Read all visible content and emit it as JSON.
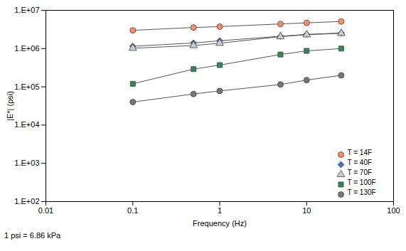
{
  "chart_data": {
    "type": "line",
    "x": [
      0.1,
      0.5,
      1,
      5,
      10,
      25
    ],
    "series": [
      {
        "name": "T = 14F",
        "color": "#FF8C69",
        "marker": "circle",
        "values": [
          3000000,
          3550000,
          3750000,
          4400000,
          4700000,
          5100000
        ]
      },
      {
        "name": "T = 40F",
        "color": "#4472C4",
        "marker": "diamond",
        "values": [
          1150000,
          1400000,
          1600000,
          2100000,
          2350000,
          2550000
        ]
      },
      {
        "name": "T = 70F",
        "color": "#CCCCCC",
        "marker": "triangle",
        "values": [
          1020000,
          1200000,
          1380000,
          2050000,
          2300000,
          2500000
        ]
      },
      {
        "name": "T = 100F",
        "color": "#2E8B57",
        "marker": "square",
        "values": [
          120000,
          290000,
          370000,
          700000,
          870000,
          1000000
        ]
      },
      {
        "name": "T = 130F",
        "color": "#777777",
        "marker": "circle",
        "values": [
          40000,
          65000,
          78000,
          115000,
          150000,
          200000
        ]
      }
    ],
    "xlabel": "Frequency (Hz)",
    "ylabel": "|E*| (psi)",
    "annotation": "1 psi = 6.86 kPa",
    "xlim": [
      0.01,
      100
    ],
    "ylim": [
      100,
      10000000
    ],
    "xticks": [
      0.01,
      0.1,
      1,
      10,
      100
    ],
    "yticks": [
      {
        "value": 100,
        "label": "1.E+02"
      },
      {
        "value": 1000,
        "label": "1.E+03"
      },
      {
        "value": 10000,
        "label": "1.E+04"
      },
      {
        "value": 100000,
        "label": "1.E+05"
      },
      {
        "value": 1000000,
        "label": "1.E+06"
      },
      {
        "value": 10000000,
        "label": "1.E+07"
      }
    ],
    "log": true,
    "grid": false,
    "legend": "lower right"
  }
}
